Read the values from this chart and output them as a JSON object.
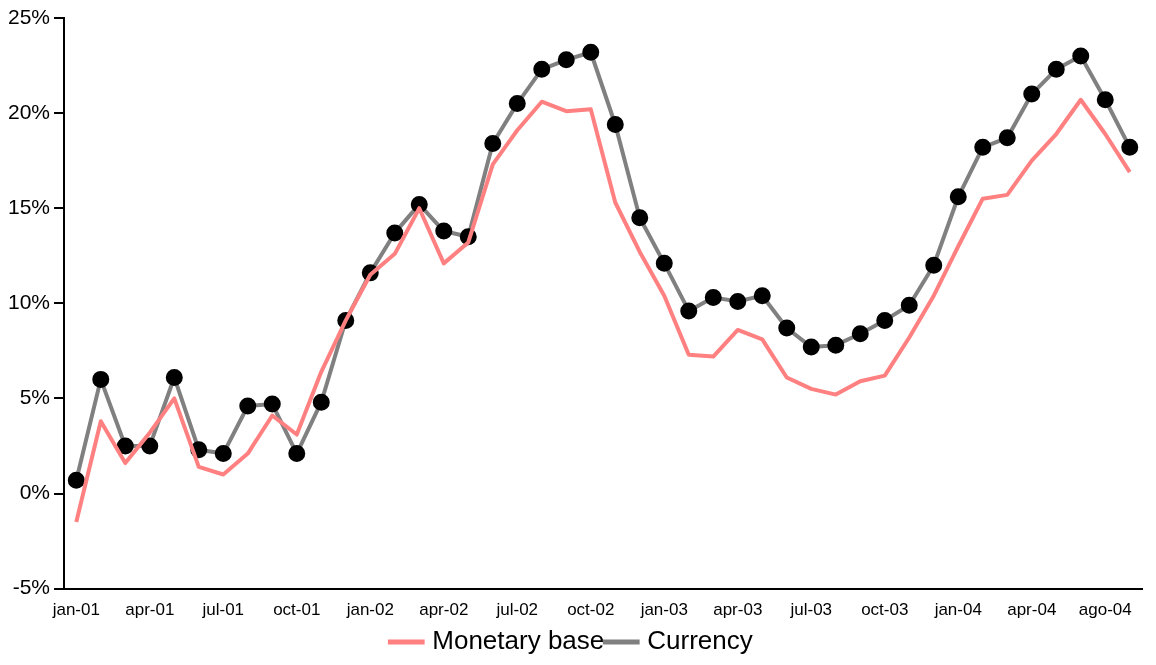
{
  "chart_data": {
    "type": "line",
    "categories": [
      "jan-01",
      null,
      null,
      "apr-01",
      null,
      null,
      "jul-01",
      null,
      null,
      "oct-01",
      null,
      null,
      "jan-02",
      null,
      null,
      "apr-02",
      null,
      null,
      "jul-02",
      null,
      null,
      "oct-02",
      null,
      null,
      "jan-03",
      null,
      null,
      "apr-03",
      null,
      null,
      "jul-03",
      null,
      null,
      "oct-03",
      null,
      null,
      "jan-04",
      null,
      null,
      "apr-04",
      null,
      null,
      "ago-04",
      null
    ],
    "series": [
      {
        "name": "Monetary base",
        "color": "#ff8080",
        "marker": "none",
        "values": [
          -1.5,
          3.8,
          1.6,
          3.2,
          5.0,
          1.4,
          1.0,
          2.1,
          4.1,
          3.1,
          6.4,
          9.1,
          11.5,
          12.6,
          15.0,
          12.1,
          13.2,
          17.3,
          19.1,
          20.6,
          20.1,
          20.2,
          15.3,
          12.7,
          10.4,
          7.3,
          7.2,
          8.6,
          8.1,
          6.1,
          5.5,
          5.2,
          5.9,
          6.2,
          8.2,
          10.4,
          13.0,
          15.5,
          15.7,
          17.5,
          18.9,
          20.7,
          18.9,
          16.9
        ]
      },
      {
        "name": "Currency",
        "color": "#808080",
        "marker": "circle",
        "values": [
          0.7,
          6.0,
          2.5,
          2.5,
          6.1,
          2.3,
          2.1,
          4.6,
          4.7,
          2.1,
          4.8,
          9.1,
          11.6,
          13.7,
          15.2,
          13.8,
          13.5,
          18.4,
          20.5,
          22.3,
          22.8,
          23.2,
          19.4,
          14.5,
          12.1,
          9.6,
          10.3,
          10.1,
          10.4,
          8.7,
          7.7,
          7.8,
          8.4,
          9.1,
          9.9,
          12.0,
          15.6,
          18.2,
          18.7,
          21.0,
          22.3,
          23.0,
          20.7,
          18.2
        ]
      }
    ],
    "ylim": [
      -5,
      25
    ],
    "yticks": [
      {
        "value": -5,
        "label": "-5%"
      },
      {
        "value": 0,
        "label": "0%"
      },
      {
        "value": 5,
        "label": "5%"
      },
      {
        "value": 10,
        "label": "10%"
      },
      {
        "value": 15,
        "label": "15%"
      },
      {
        "value": 20,
        "label": "20%"
      },
      {
        "value": 25,
        "label": "25%"
      }
    ],
    "grid": false,
    "legend": "bottom"
  }
}
